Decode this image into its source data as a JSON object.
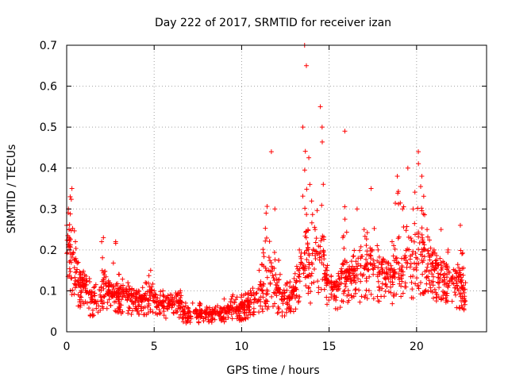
{
  "colors": {
    "series": "#ff0000",
    "grid": "#a0a0a0",
    "axis": "#000000",
    "background": "#ffffff"
  },
  "chart_data": {
    "type": "scatter",
    "title": "Day 222 of 2017, SRMTID for receiver izan",
    "xlabel": "GPS time / hours",
    "ylabel": "SRMTID / TECUs",
    "xlim": [
      0,
      24
    ],
    "ylim": [
      0,
      0.7
    ],
    "x_ticks": [
      0,
      5,
      10,
      15,
      20
    ],
    "x_tick_labels": [
      "0",
      "5",
      "10",
      "15",
      "20"
    ],
    "y_ticks": [
      0,
      0.1,
      0.2,
      0.3,
      0.4,
      0.5,
      0.6,
      0.7
    ],
    "y_tick_labels": [
      "0",
      "0.1",
      "0.2",
      "0.3",
      "0.4",
      "0.5",
      "0.6",
      "0.7"
    ],
    "grid": true,
    "marker": "+",
    "series": [
      {
        "name": "SRMTID",
        "envelope_description": "approximate typical level and peak level per time bin (hours, TECU); x spans 0 to 22.8 h",
        "x": [
          0.0,
          0.1,
          0.2,
          0.3,
          0.5,
          0.8,
          1.0,
          1.3,
          1.6,
          2.0,
          2.1,
          2.4,
          2.8,
          3.0,
          3.5,
          4.0,
          4.5,
          4.8,
          5.0,
          5.5,
          6.0,
          6.5,
          6.8,
          7.2,
          7.6,
          8.0,
          8.5,
          9.0,
          9.5,
          10.0,
          10.5,
          11.0,
          11.4,
          11.7,
          11.9,
          12.2,
          12.6,
          13.0,
          13.3,
          13.5,
          13.6,
          13.7,
          13.9,
          14.2,
          14.5,
          14.6,
          14.8,
          15.2,
          15.6,
          15.9,
          16.2,
          16.6,
          17.0,
          17.4,
          17.8,
          18.2,
          18.6,
          18.9,
          19.2,
          19.5,
          19.8,
          20.1,
          20.3,
          20.6,
          21.0,
          21.4,
          21.8,
          22.2,
          22.5,
          22.8
        ],
        "typical": [
          0.16,
          0.2,
          0.18,
          0.15,
          0.13,
          0.1,
          0.11,
          0.07,
          0.07,
          0.09,
          0.1,
          0.09,
          0.08,
          0.08,
          0.08,
          0.07,
          0.07,
          0.08,
          0.06,
          0.06,
          0.06,
          0.06,
          0.03,
          0.04,
          0.04,
          0.04,
          0.04,
          0.04,
          0.05,
          0.05,
          0.06,
          0.08,
          0.09,
          0.12,
          0.09,
          0.07,
          0.07,
          0.09,
          0.12,
          0.18,
          0.22,
          0.17,
          0.12,
          0.15,
          0.18,
          0.17,
          0.12,
          0.1,
          0.1,
          0.13,
          0.12,
          0.12,
          0.14,
          0.15,
          0.13,
          0.12,
          0.11,
          0.13,
          0.13,
          0.14,
          0.15,
          0.16,
          0.17,
          0.14,
          0.14,
          0.12,
          0.12,
          0.11,
          0.1,
          0.07
        ],
        "peak": [
          0.26,
          0.3,
          0.33,
          0.35,
          0.22,
          0.14,
          0.13,
          0.13,
          0.11,
          0.22,
          0.23,
          0.12,
          0.22,
          0.14,
          0.12,
          0.1,
          0.12,
          0.15,
          0.1,
          0.1,
          0.09,
          0.1,
          0.07,
          0.07,
          0.07,
          0.06,
          0.06,
          0.08,
          0.09,
          0.09,
          0.1,
          0.15,
          0.29,
          0.44,
          0.3,
          0.14,
          0.12,
          0.13,
          0.2,
          0.5,
          0.7,
          0.65,
          0.36,
          0.25,
          0.55,
          0.5,
          0.15,
          0.12,
          0.13,
          0.49,
          0.15,
          0.3,
          0.25,
          0.35,
          0.2,
          0.17,
          0.22,
          0.38,
          0.3,
          0.4,
          0.3,
          0.44,
          0.38,
          0.25,
          0.2,
          0.25,
          0.2,
          0.15,
          0.26,
          0.12
        ]
      }
    ]
  }
}
